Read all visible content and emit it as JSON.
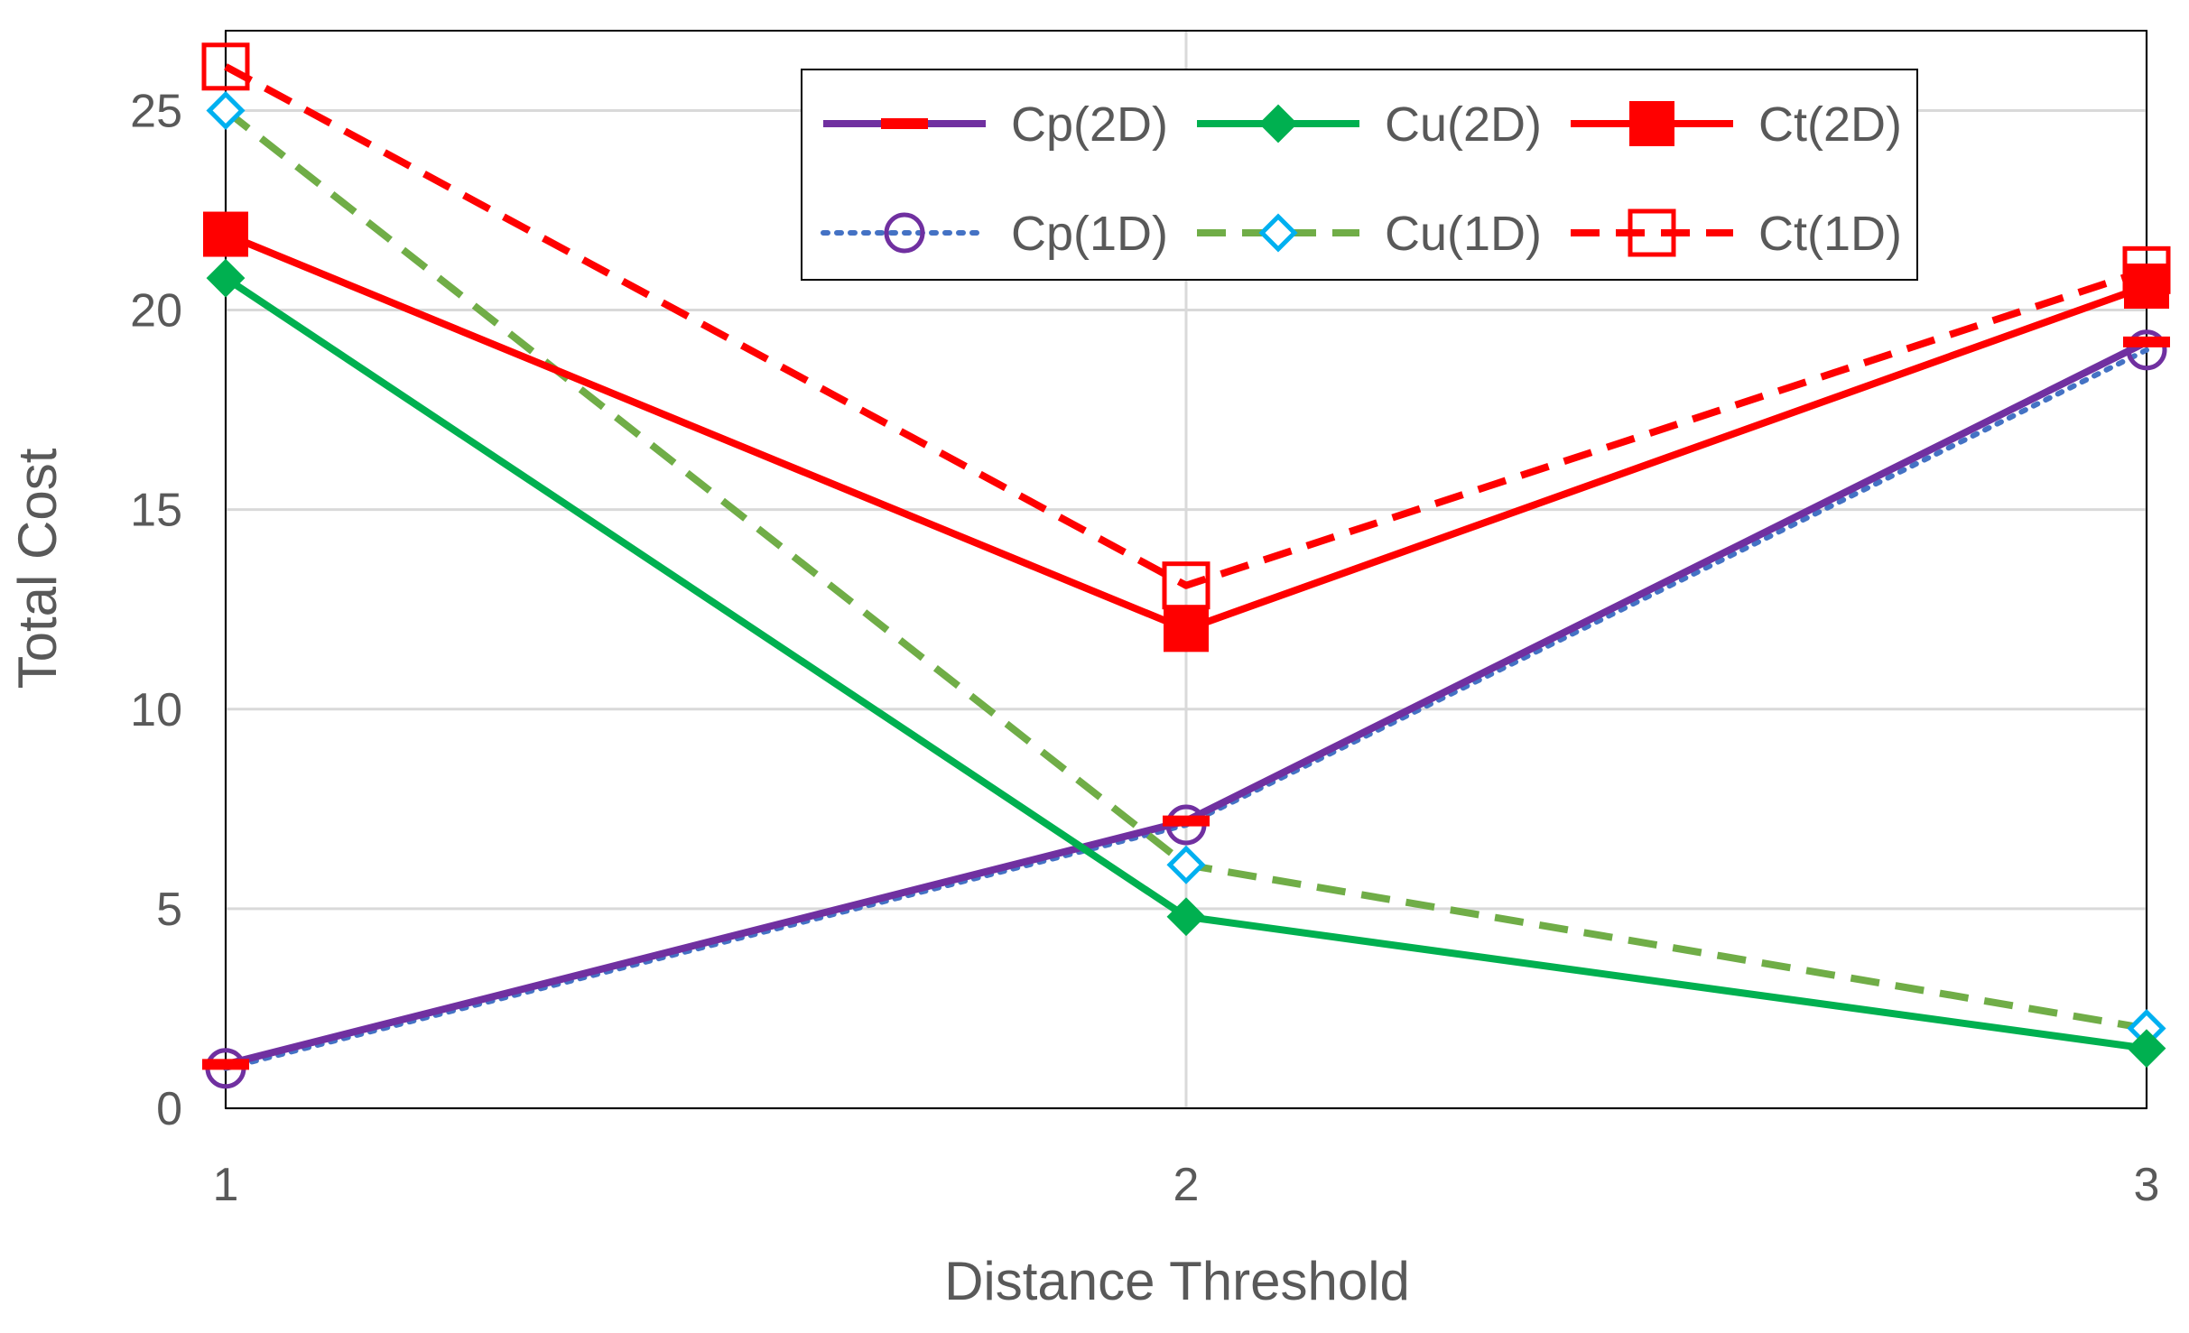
{
  "chart_data": {
    "type": "line",
    "x": [
      1,
      2,
      3
    ],
    "xlabel": "Distance Threshold",
    "ylabel": "Total Cost",
    "xticks": [
      "1",
      "2",
      "3"
    ],
    "yticks": [
      "0",
      "5",
      "10",
      "15",
      "20",
      "25"
    ],
    "ylim": [
      0,
      27
    ],
    "grid": true,
    "legend_position": "top-right",
    "series": [
      {
        "name": "Cp(2D)",
        "values": [
          1.1,
          7.2,
          19.2
        ],
        "color": "#7030A0",
        "line_style": "solid",
        "marker": "dash",
        "marker_color": "#FF0000"
      },
      {
        "name": "Cu(2D)",
        "values": [
          20.8,
          4.8,
          1.5
        ],
        "color": "#00B050",
        "line_style": "solid",
        "marker": "diamond-filled",
        "marker_color": "#00B050"
      },
      {
        "name": "Ct(2D)",
        "values": [
          21.9,
          12.0,
          20.6
        ],
        "color": "#FF0000",
        "line_style": "solid",
        "marker": "square-filled",
        "marker_color": "#FF0000"
      },
      {
        "name": "Cp(1D)",
        "values": [
          1.0,
          7.1,
          19.0
        ],
        "color": "#4472C4",
        "line_style": "dotted",
        "marker": "circle-open",
        "marker_color": "#7030A0"
      },
      {
        "name": "Cu(1D)",
        "values": [
          25.0,
          6.1,
          2.0
        ],
        "color": "#70AD47",
        "line_style": "dashed",
        "marker": "diamond-open",
        "marker_color": "#00B0F0"
      },
      {
        "name": "Ct(1D)",
        "values": [
          26.1,
          13.1,
          21.0
        ],
        "color": "#FF0000",
        "line_style": "dashed",
        "marker": "square-open",
        "marker_color": "#FF0000"
      }
    ]
  }
}
